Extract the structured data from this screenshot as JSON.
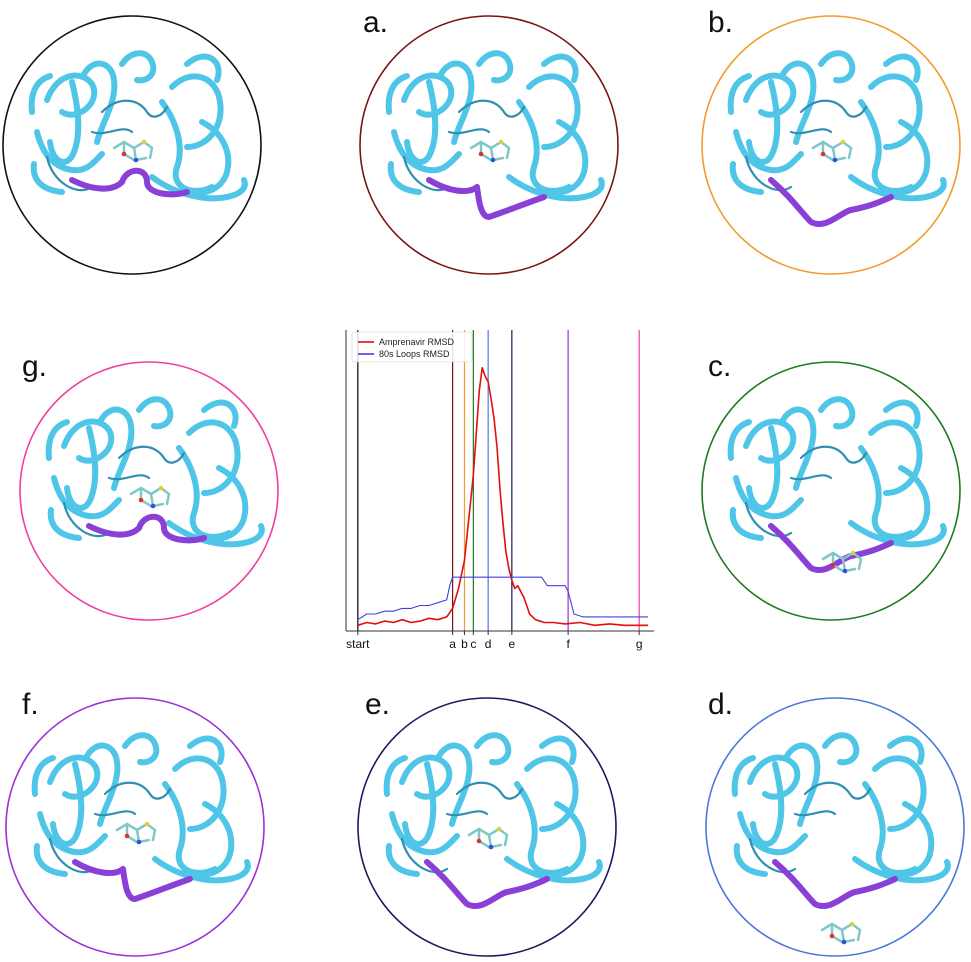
{
  "panels": [
    {
      "id": "start",
      "label": "",
      "ring_color": "#111111",
      "loop_state": "closed",
      "ligand": "bound"
    },
    {
      "id": "a",
      "label": "a.",
      "ring_color": "#7a1414",
      "loop_state": "semi-open",
      "ligand": "bound"
    },
    {
      "id": "b",
      "label": "b.",
      "ring_color": "#f29a2e",
      "loop_state": "open",
      "ligand": "bound"
    },
    {
      "id": "c",
      "label": "c.",
      "ring_color": "#1f7a1f",
      "loop_state": "open",
      "ligand": "exiting"
    },
    {
      "id": "d",
      "label": "d.",
      "ring_color": "#4a78d8",
      "loop_state": "open",
      "ligand": "released"
    },
    {
      "id": "e",
      "label": "e.",
      "ring_color": "#1a1a5e",
      "loop_state": "open",
      "ligand": "rebinding"
    },
    {
      "id": "f",
      "label": "f.",
      "ring_color": "#9b30d9",
      "loop_state": "semi-open",
      "ligand": "bound"
    },
    {
      "id": "g",
      "label": "g.",
      "ring_color": "#ee3fa0",
      "loop_state": "closed",
      "ligand": "bound"
    }
  ],
  "colors": {
    "protein": "#4fc6e8",
    "protein_dark": "#2f8fb3",
    "flap_loop": "#8a3fd6",
    "ligand": "#7fc8c8"
  },
  "chart_data": {
    "type": "line",
    "title": "",
    "xlabel": "",
    "ylabel": "",
    "x_tick_labels": [
      "start",
      "a",
      "b",
      "c",
      "d",
      "e",
      "f",
      "g"
    ],
    "x_ticks": [
      0,
      32,
      36,
      39,
      44,
      52,
      71,
      95
    ],
    "vline_colors": [
      "#000000",
      "#7a1414",
      "#f29a2e",
      "#1f7a1f",
      "#4a78d8",
      "#1a1a5e",
      "#9b30d9",
      "#ee3fa0"
    ],
    "xlim": [
      -4,
      100
    ],
    "ylim": [
      0,
      10
    ],
    "grid": false,
    "legend": "top-left",
    "series": [
      {
        "name": "Amprenavir RMSD",
        "color": "#e01010",
        "x": [
          0,
          3,
          6,
          9,
          12,
          15,
          18,
          21,
          24,
          27,
          30,
          32,
          34,
          36,
          37,
          38,
          39,
          40,
          41,
          42,
          43,
          44,
          45,
          46,
          47,
          48,
          49,
          50,
          51,
          52,
          53,
          54,
          55,
          56,
          57,
          58,
          60,
          63,
          66,
          70,
          75,
          80,
          85,
          90,
          95,
          98
        ],
        "y": [
          0.2,
          0.3,
          0.25,
          0.35,
          0.3,
          0.4,
          0.3,
          0.35,
          0.45,
          0.4,
          0.5,
          0.8,
          1.5,
          2.5,
          3.5,
          4.5,
          5.5,
          7.0,
          8.5,
          9.3,
          9.0,
          8.8,
          8.2,
          7.5,
          6.5,
          5.0,
          3.8,
          2.8,
          2.2,
          1.8,
          1.5,
          1.6,
          1.4,
          1.2,
          0.9,
          0.6,
          0.4,
          0.3,
          0.3,
          0.25,
          0.3,
          0.2,
          0.25,
          0.2,
          0.2,
          0.2
        ]
      },
      {
        "name": "80s Loops RMSD",
        "color": "#4040e0",
        "x": [
          0,
          3,
          6,
          9,
          12,
          15,
          18,
          21,
          24,
          27,
          30,
          31,
          32,
          34,
          36,
          40,
          44,
          48,
          52,
          56,
          60,
          62,
          64,
          66,
          68,
          70,
          71,
          73,
          76,
          80,
          85,
          90,
          95,
          98
        ],
        "y": [
          0.4,
          0.6,
          0.6,
          0.7,
          0.7,
          0.8,
          0.8,
          0.9,
          0.9,
          1.0,
          1.1,
          1.6,
          1.9,
          1.9,
          1.9,
          1.9,
          1.9,
          1.9,
          1.9,
          1.9,
          1.9,
          1.9,
          1.6,
          1.6,
          1.6,
          1.6,
          1.4,
          0.6,
          0.5,
          0.5,
          0.5,
          0.5,
          0.5,
          0.5
        ]
      }
    ]
  }
}
